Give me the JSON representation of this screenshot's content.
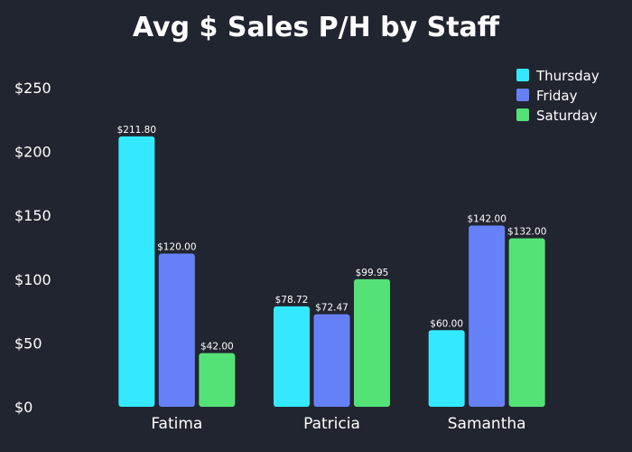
{
  "chart_data": {
    "type": "bar",
    "title": "Avg $ Sales P/H by Staff",
    "xlabel": "",
    "ylabel": "",
    "categories": [
      "Fatima",
      "Patricia",
      "Samantha"
    ],
    "series": [
      {
        "name": "Thursday",
        "color": "#34e8ff",
        "values": [
          211.8,
          78.72,
          60.0
        ],
        "labels": [
          "$211.80",
          "$78.72",
          "$60.00"
        ]
      },
      {
        "name": "Friday",
        "color": "#6681f8",
        "values": [
          120.0,
          72.47,
          142.0
        ],
        "labels": [
          "$120.00",
          "$72.47",
          "$142.00"
        ]
      },
      {
        "name": "Saturday",
        "color": "#54e277",
        "values": [
          42.0,
          99.95,
          132.0
        ],
        "labels": [
          "$42.00",
          "$99.95",
          "$132.00"
        ]
      }
    ],
    "ylim": [
      0,
      262
    ],
    "yticks": [
      0,
      50,
      100,
      150,
      200,
      250
    ],
    "ytick_labels": [
      "$0",
      "$50",
      "$100",
      "$150",
      "$200",
      "$250"
    ],
    "grid": false,
    "legend_position": "top-right"
  }
}
